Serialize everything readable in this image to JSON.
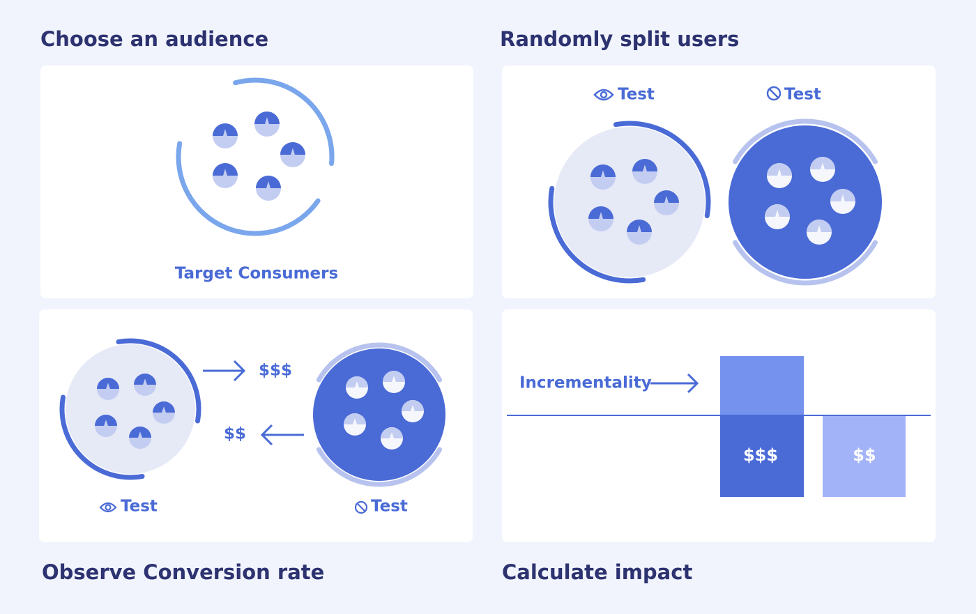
{
  "panels": [
    {
      "title": "Choose an audience",
      "caption": "Target Consumers"
    },
    {
      "title": "Randomly split users",
      "groups": [
        {
          "label": "Test"
        },
        {
          "label": "Test"
        }
      ]
    },
    {
      "title": "Observe Conversion rate",
      "groups": [
        {
          "label": "Test"
        },
        {
          "label": "Test"
        }
      ],
      "flows": [
        "$$$",
        "$$"
      ]
    },
    {
      "title": "Calculate impact",
      "annotation": "Incrementality",
      "bars": [
        "$$$",
        "$$"
      ]
    }
  ]
}
